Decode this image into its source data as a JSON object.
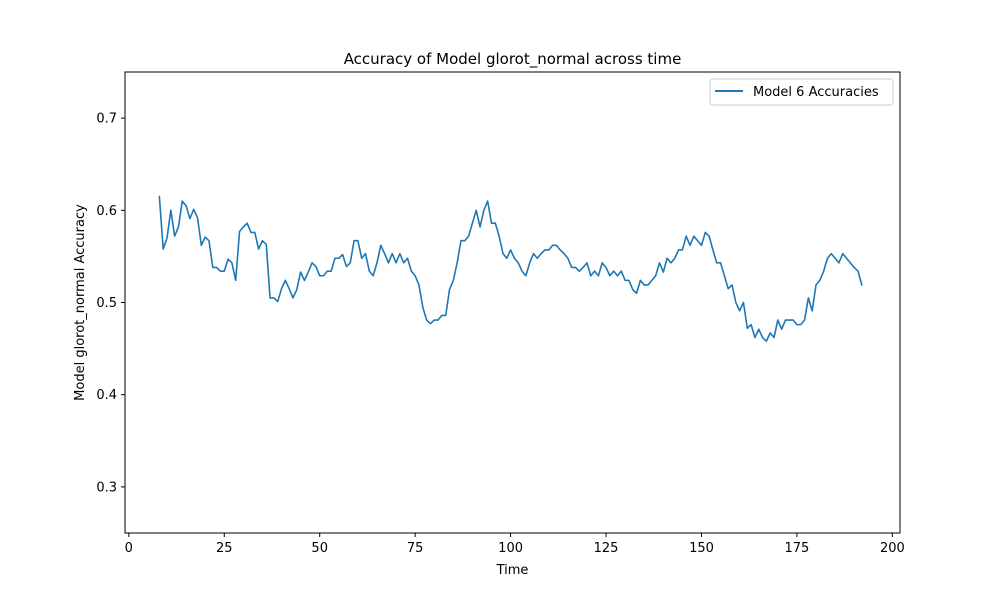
{
  "chart_data": {
    "type": "line",
    "title": "Accuracy of Model glorot_normal across time",
    "xlabel": "Time",
    "ylabel": "Model glorot_normal Accuracy",
    "xlim": [
      -1,
      202
    ],
    "ylim": [
      0.25,
      0.75
    ],
    "xticks": [
      0,
      25,
      50,
      75,
      100,
      125,
      150,
      175,
      200
    ],
    "yticks": [
      0.3,
      0.4,
      0.5,
      0.6,
      0.7
    ],
    "grid": false,
    "legend_position": "top-right",
    "series": [
      {
        "name": "Model 6 Accuracies",
        "color": "#1f77b4",
        "x": [
          8,
          9,
          10,
          11,
          12,
          13,
          14,
          15,
          16,
          17,
          18,
          19,
          20,
          21,
          22,
          23,
          24,
          25,
          26,
          27,
          28,
          29,
          30,
          31,
          32,
          33,
          34,
          35,
          36,
          37,
          38,
          39,
          40,
          41,
          42,
          43,
          44,
          45,
          46,
          47,
          48,
          49,
          50,
          51,
          52,
          53,
          54,
          55,
          56,
          57,
          58,
          59,
          60,
          61,
          62,
          63,
          64,
          65,
          66,
          67,
          68,
          69,
          70,
          71,
          72,
          73,
          74,
          75,
          76,
          77,
          78,
          79,
          80,
          81,
          82,
          83,
          84,
          85,
          86,
          87,
          88,
          89,
          90,
          91,
          92,
          93,
          94,
          95,
          96,
          97,
          98,
          99,
          100,
          101,
          102,
          103,
          104,
          105,
          106,
          107,
          108,
          109,
          110,
          111,
          112,
          113,
          114,
          115,
          116,
          117,
          118,
          119,
          120,
          121,
          122,
          123,
          124,
          125,
          126,
          127,
          128,
          129,
          130,
          131,
          132,
          133,
          134,
          135,
          136,
          137,
          138,
          139,
          140,
          141,
          142,
          143,
          144,
          145,
          146,
          147,
          148,
          149,
          150,
          151,
          152,
          153,
          154,
          155,
          156,
          157,
          158,
          159,
          160,
          161,
          162,
          163,
          164,
          165,
          166,
          167,
          168,
          169,
          170,
          171,
          172,
          173,
          174,
          175,
          176,
          177,
          178,
          179,
          180,
          181,
          182,
          183,
          184,
          185,
          186,
          187,
          188,
          189,
          190,
          191,
          192
        ],
        "values": [
          0.615,
          0.558,
          0.57,
          0.6,
          0.572,
          0.582,
          0.61,
          0.605,
          0.591,
          0.601,
          0.592,
          0.562,
          0.571,
          0.567,
          0.538,
          0.538,
          0.534,
          0.534,
          0.547,
          0.543,
          0.524,
          0.577,
          0.582,
          0.586,
          0.576,
          0.576,
          0.558,
          0.567,
          0.563,
          0.505,
          0.505,
          0.501,
          0.515,
          0.524,
          0.515,
          0.505,
          0.514,
          0.533,
          0.524,
          0.533,
          0.543,
          0.539,
          0.529,
          0.529,
          0.534,
          0.534,
          0.548,
          0.548,
          0.552,
          0.539,
          0.543,
          0.567,
          0.567,
          0.548,
          0.553,
          0.534,
          0.529,
          0.543,
          0.562,
          0.553,
          0.543,
          0.553,
          0.543,
          0.553,
          0.543,
          0.548,
          0.534,
          0.529,
          0.519,
          0.495,
          0.481,
          0.477,
          0.481,
          0.481,
          0.486,
          0.486,
          0.514,
          0.524,
          0.543,
          0.567,
          0.567,
          0.572,
          0.586,
          0.6,
          0.582,
          0.6,
          0.61,
          0.586,
          0.586,
          0.572,
          0.553,
          0.548,
          0.557,
          0.548,
          0.543,
          0.534,
          0.529,
          0.543,
          0.553,
          0.548,
          0.553,
          0.557,
          0.557,
          0.562,
          0.562,
          0.557,
          0.553,
          0.548,
          0.538,
          0.538,
          0.534,
          0.538,
          0.543,
          0.529,
          0.534,
          0.529,
          0.543,
          0.538,
          0.529,
          0.534,
          0.529,
          0.534,
          0.524,
          0.524,
          0.514,
          0.51,
          0.524,
          0.519,
          0.519,
          0.524,
          0.529,
          0.543,
          0.533,
          0.548,
          0.543,
          0.548,
          0.557,
          0.557,
          0.572,
          0.562,
          0.572,
          0.567,
          0.562,
          0.576,
          0.572,
          0.557,
          0.543,
          0.543,
          0.529,
          0.515,
          0.519,
          0.5,
          0.491,
          0.5,
          0.472,
          0.476,
          0.462,
          0.471,
          0.462,
          0.458,
          0.467,
          0.462,
          0.481,
          0.471,
          0.481,
          0.481,
          0.481,
          0.476,
          0.476,
          0.481,
          0.505,
          0.491,
          0.519,
          0.524,
          0.534,
          0.548,
          0.553,
          0.548,
          0.543,
          0.553,
          0.548,
          0.543,
          0.538,
          0.534,
          0.519
        ]
      }
    ]
  }
}
